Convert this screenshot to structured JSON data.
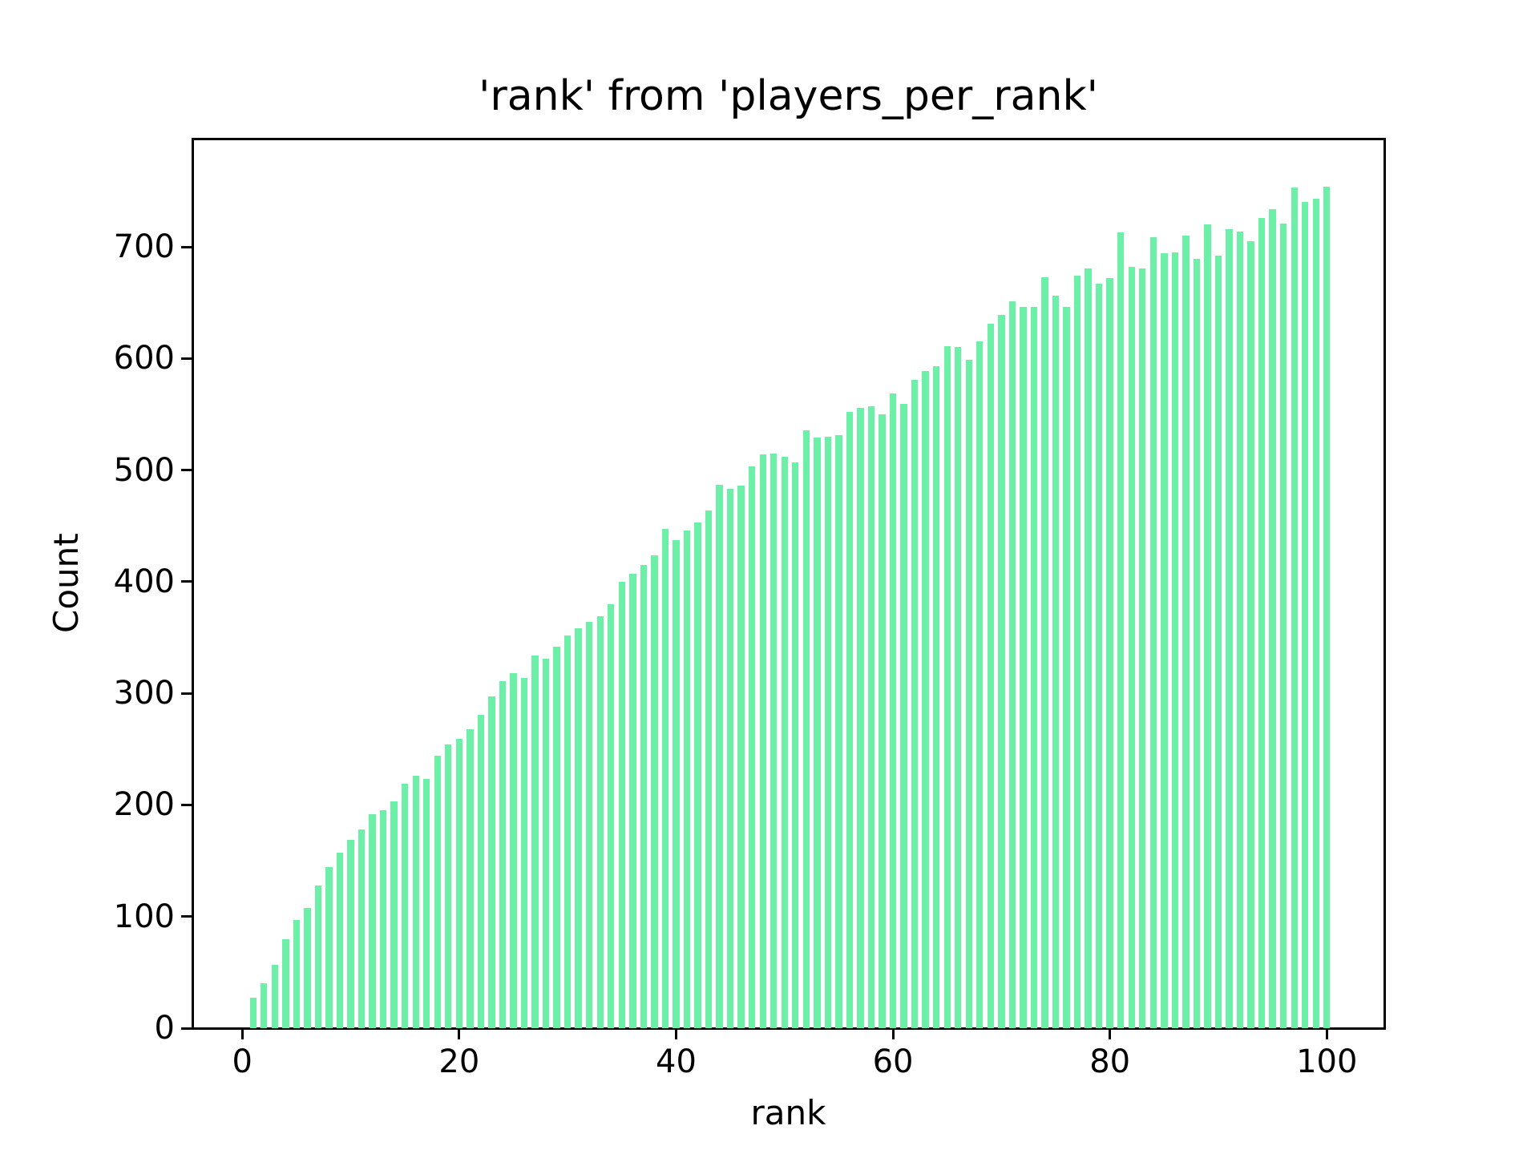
{
  "figure": {
    "background": "#ffffff",
    "text_color": "#000000"
  },
  "chart_data": {
    "type": "bar",
    "title": "'rank' from 'players_per_rank'",
    "xlabel": "rank",
    "ylabel": "Count",
    "bar_color": "#6cefa6",
    "grid": false,
    "legend_position": "none",
    "xlim": [
      -4.6,
      105.3
    ],
    "ylim": [
      0,
      797
    ],
    "xticks": [
      0,
      20,
      40,
      60,
      80,
      100
    ],
    "yticks": [
      0,
      100,
      200,
      300,
      400,
      500,
      600,
      700
    ],
    "bar_width": 0.62,
    "x": [
      1,
      2,
      3,
      4,
      5,
      6,
      7,
      8,
      9,
      10,
      11,
      12,
      13,
      14,
      15,
      16,
      17,
      18,
      19,
      20,
      21,
      22,
      23,
      24,
      25,
      26,
      27,
      28,
      29,
      30,
      31,
      32,
      33,
      34,
      35,
      36,
      37,
      38,
      39,
      40,
      41,
      42,
      43,
      44,
      45,
      46,
      47,
      48,
      49,
      50,
      51,
      52,
      53,
      54,
      55,
      56,
      57,
      58,
      59,
      60,
      61,
      62,
      63,
      64,
      65,
      66,
      67,
      68,
      69,
      70,
      71,
      72,
      73,
      74,
      75,
      76,
      77,
      78,
      79,
      80,
      81,
      82,
      83,
      84,
      85,
      86,
      87,
      88,
      89,
      90,
      91,
      92,
      93,
      94,
      95,
      96,
      97,
      98,
      99,
      100
    ],
    "values": [
      27,
      40,
      57,
      80,
      97,
      108,
      128,
      144,
      157,
      169,
      178,
      192,
      195,
      203,
      219,
      226,
      223,
      244,
      254,
      259,
      268,
      281,
      297,
      311,
      318,
      314,
      334,
      331,
      342,
      352,
      358,
      364,
      369,
      380,
      400,
      407,
      415,
      424,
      447,
      437,
      446,
      453,
      464,
      487,
      483,
      486,
      503,
      514,
      515,
      512,
      507,
      536,
      529,
      530,
      531,
      552,
      556,
      557,
      550,
      569,
      559,
      581,
      589,
      593,
      611,
      610,
      599,
      615,
      631,
      639,
      651,
      646,
      646,
      673,
      656,
      646,
      674,
      681,
      667,
      672,
      713,
      682,
      681,
      709,
      694,
      695,
      710,
      689,
      720,
      692,
      716,
      714,
      705,
      726,
      734,
      721,
      753,
      740,
      743,
      754
    ]
  }
}
